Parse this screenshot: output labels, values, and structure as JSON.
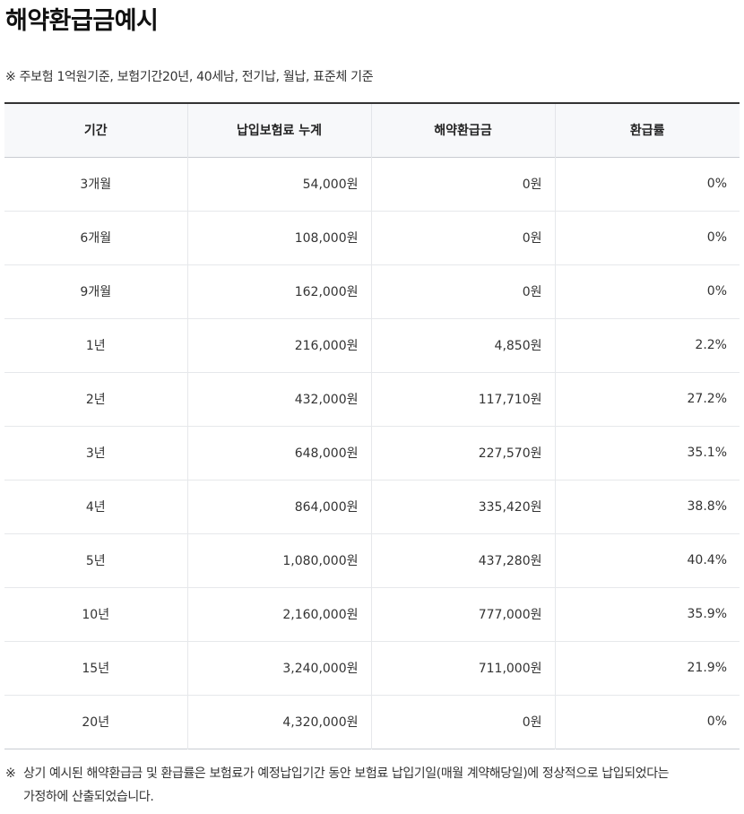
{
  "title": "해약환급금예시",
  "top_note": "※  주보험 1억원기준, 보험기간20년, 40세남, 전기납, 월납, 표준체 기준",
  "table": {
    "headers": [
      "기간",
      "납입보험료 누계",
      "해약환급금",
      "환급률"
    ],
    "rows": [
      {
        "period": "3개월",
        "paid": "54,000원",
        "refund": "0원",
        "rate": "0%"
      },
      {
        "period": "6개월",
        "paid": "108,000원",
        "refund": "0원",
        "rate": "0%"
      },
      {
        "period": "9개월",
        "paid": "162,000원",
        "refund": "0원",
        "rate": "0%"
      },
      {
        "period": "1년",
        "paid": "216,000원",
        "refund": "4,850원",
        "rate": "2.2%"
      },
      {
        "period": "2년",
        "paid": "432,000원",
        "refund": "117,710원",
        "rate": "27.2%"
      },
      {
        "period": "3년",
        "paid": "648,000원",
        "refund": "227,570원",
        "rate": "35.1%"
      },
      {
        "period": "4년",
        "paid": "864,000원",
        "refund": "335,420원",
        "rate": "38.8%"
      },
      {
        "period": "5년",
        "paid": "1,080,000원",
        "refund": "437,280원",
        "rate": "40.4%"
      },
      {
        "period": "10년",
        "paid": "2,160,000원",
        "refund": "777,000원",
        "rate": "35.9%"
      },
      {
        "period": "15년",
        "paid": "3,240,000원",
        "refund": "711,000원",
        "rate": "21.9%"
      },
      {
        "period": "20년",
        "paid": "4,320,000원",
        "refund": "0원",
        "rate": "0%"
      }
    ]
  },
  "bottom_note": {
    "mark": "※",
    "line1": "상기 예시된 해약환급금 및 환급률은 보험료가 예정납입기간 동안 보험료 납입기일(매월 계약해당일)에 정상적으로 납입되었다는",
    "line2": "가정하에 산출되었습니다."
  }
}
